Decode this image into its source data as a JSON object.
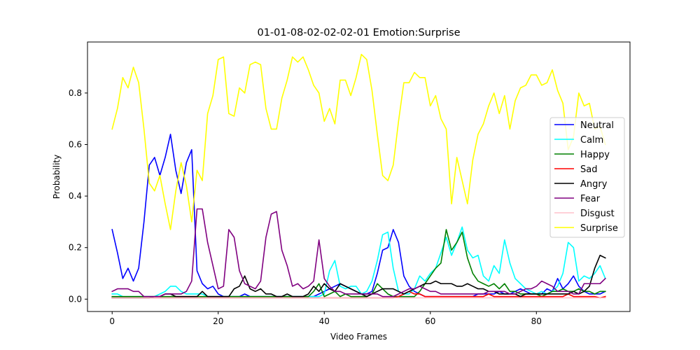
{
  "chart_data": {
    "type": "line",
    "title": "01-01-08-02-02-02-01 Emotion:Surprise",
    "xlabel": "Video Frames",
    "ylabel": "Probability",
    "xlim": [
      -4.65,
      97.65
    ],
    "ylim": [
      -0.048,
      0.998
    ],
    "xticks": [
      0,
      20,
      40,
      60,
      80
    ],
    "yticks": [
      0.0,
      0.2,
      0.4,
      0.6,
      0.8
    ],
    "ytick_labels": [
      "0.0",
      "0.2",
      "0.4",
      "0.6",
      "0.8"
    ],
    "grid": false,
    "legend_position": "center-right",
    "series": [
      {
        "name": "Neutral",
        "color": "#0000ff",
        "values": [
          0.27,
          0.18,
          0.08,
          0.12,
          0.07,
          0.12,
          0.3,
          0.52,
          0.55,
          0.48,
          0.55,
          0.64,
          0.5,
          0.41,
          0.53,
          0.58,
          0.11,
          0.06,
          0.04,
          0.05,
          0.02,
          0.01,
          0.01,
          0.01,
          0.01,
          0.02,
          0.01,
          0.01,
          0.01,
          0.01,
          0.01,
          0.01,
          0.01,
          0.01,
          0.01,
          0.01,
          0.01,
          0.01,
          0.01,
          0.02,
          0.03,
          0.04,
          0.05,
          0.06,
          0.05,
          0.04,
          0.03,
          0.02,
          0.02,
          0.03,
          0.1,
          0.19,
          0.2,
          0.27,
          0.22,
          0.09,
          0.05,
          0.03,
          0.02,
          0.01,
          0.01,
          0.01,
          0.01,
          0.01,
          0.01,
          0.01,
          0.01,
          0.01,
          0.01,
          0.02,
          0.02,
          0.02,
          0.02,
          0.03,
          0.02,
          0.02,
          0.03,
          0.04,
          0.03,
          0.02,
          0.02,
          0.02,
          0.04,
          0.03,
          0.08,
          0.04,
          0.06,
          0.09,
          0.05,
          0.03,
          0.02,
          0.02,
          0.02,
          0.03
        ]
      },
      {
        "name": "Calm",
        "color": "#00ffff",
        "values": [
          0.02,
          0.02,
          0.01,
          0.01,
          0.01,
          0.01,
          0.01,
          0.01,
          0.01,
          0.02,
          0.03,
          0.05,
          0.05,
          0.03,
          0.02,
          0.02,
          0.02,
          0.02,
          0.01,
          0.01,
          0.01,
          0.01,
          0.01,
          0.01,
          0.01,
          0.01,
          0.01,
          0.01,
          0.01,
          0.01,
          0.01,
          0.01,
          0.01,
          0.01,
          0.01,
          0.01,
          0.01,
          0.01,
          0.01,
          0.01,
          0.02,
          0.11,
          0.15,
          0.05,
          0.04,
          0.05,
          0.05,
          0.02,
          0.03,
          0.07,
          0.15,
          0.25,
          0.26,
          0.12,
          0.03,
          0.02,
          0.02,
          0.04,
          0.09,
          0.07,
          0.1,
          0.12,
          0.18,
          0.24,
          0.17,
          0.22,
          0.28,
          0.19,
          0.16,
          0.17,
          0.09,
          0.07,
          0.13,
          0.1,
          0.23,
          0.14,
          0.08,
          0.06,
          0.04,
          0.03,
          0.02,
          0.03,
          0.02,
          0.03,
          0.05,
          0.1,
          0.22,
          0.2,
          0.07,
          0.09,
          0.08,
          0.1,
          0.13,
          0.08
        ]
      },
      {
        "name": "Happy",
        "color": "#008000",
        "values": [
          0.01,
          0.01,
          0.01,
          0.01,
          0.01,
          0.01,
          0.01,
          0.01,
          0.01,
          0.01,
          0.01,
          0.01,
          0.01,
          0.01,
          0.01,
          0.01,
          0.01,
          0.01,
          0.01,
          0.01,
          0.01,
          0.01,
          0.01,
          0.01,
          0.01,
          0.01,
          0.01,
          0.01,
          0.01,
          0.01,
          0.01,
          0.01,
          0.01,
          0.01,
          0.01,
          0.01,
          0.01,
          0.01,
          0.03,
          0.06,
          0.01,
          0.02,
          0.03,
          0.01,
          0.02,
          0.01,
          0.01,
          0.01,
          0.01,
          0.02,
          0.06,
          0.04,
          0.02,
          0.01,
          0.01,
          0.01,
          0.01,
          0.01,
          0.03,
          0.06,
          0.09,
          0.12,
          0.14,
          0.27,
          0.19,
          0.22,
          0.26,
          0.16,
          0.1,
          0.07,
          0.06,
          0.05,
          0.06,
          0.04,
          0.06,
          0.03,
          0.03,
          0.02,
          0.02,
          0.02,
          0.02,
          0.01,
          0.02,
          0.03,
          0.03,
          0.04,
          0.03,
          0.03,
          0.04,
          0.03,
          0.03,
          0.02,
          0.03,
          0.03
        ]
      },
      {
        "name": "Sad",
        "color": "#ff0000",
        "values": [
          0.005,
          0.005,
          0.005,
          0.005,
          0.005,
          0.005,
          0.005,
          0.005,
          0.005,
          0.005,
          0.005,
          0.005,
          0.005,
          0.005,
          0.005,
          0.005,
          0.005,
          0.005,
          0.005,
          0.005,
          0.005,
          0.005,
          0.005,
          0.005,
          0.005,
          0.005,
          0.005,
          0.005,
          0.005,
          0.005,
          0.005,
          0.005,
          0.005,
          0.005,
          0.005,
          0.005,
          0.005,
          0.005,
          0.005,
          0.005,
          0.005,
          0.005,
          0.005,
          0.005,
          0.005,
          0.005,
          0.005,
          0.005,
          0.005,
          0.005,
          0.005,
          0.005,
          0.005,
          0.005,
          0.01,
          0.02,
          0.03,
          0.02,
          0.02,
          0.01,
          0.01,
          0.01,
          0.01,
          0.01,
          0.01,
          0.01,
          0.01,
          0.01,
          0.01,
          0.01,
          0.01,
          0.02,
          0.01,
          0.01,
          0.01,
          0.01,
          0.01,
          0.01,
          0.01,
          0.01,
          0.01,
          0.01,
          0.01,
          0.01,
          0.01,
          0.01,
          0.02,
          0.01,
          0.01,
          0.01,
          0.01,
          0.01,
          0.005,
          0.01
        ]
      },
      {
        "name": "Angry",
        "color": "#000000",
        "values": [
          0.005,
          0.005,
          0.005,
          0.005,
          0.005,
          0.005,
          0.005,
          0.005,
          0.01,
          0.01,
          0.02,
          0.02,
          0.01,
          0.01,
          0.01,
          0.01,
          0.01,
          0.03,
          0.01,
          0.01,
          0.01,
          0.01,
          0.01,
          0.04,
          0.05,
          0.09,
          0.04,
          0.03,
          0.04,
          0.02,
          0.02,
          0.01,
          0.01,
          0.02,
          0.01,
          0.01,
          0.01,
          0.02,
          0.05,
          0.03,
          0.06,
          0.04,
          0.03,
          0.06,
          0.05,
          0.04,
          0.03,
          0.02,
          0.01,
          0.02,
          0.03,
          0.04,
          0.04,
          0.04,
          0.03,
          0.02,
          0.03,
          0.04,
          0.05,
          0.06,
          0.06,
          0.07,
          0.06,
          0.06,
          0.06,
          0.05,
          0.05,
          0.06,
          0.05,
          0.04,
          0.04,
          0.03,
          0.03,
          0.02,
          0.02,
          0.02,
          0.02,
          0.01,
          0.02,
          0.02,
          0.02,
          0.02,
          0.02,
          0.02,
          0.02,
          0.02,
          0.02,
          0.03,
          0.02,
          0.03,
          0.05,
          0.12,
          0.17,
          0.16
        ]
      },
      {
        "name": "Fear",
        "color": "#800080",
        "values": [
          0.03,
          0.04,
          0.04,
          0.04,
          0.03,
          0.03,
          0.01,
          0.01,
          0.01,
          0.01,
          0.02,
          0.02,
          0.02,
          0.02,
          0.03,
          0.07,
          0.35,
          0.35,
          0.22,
          0.13,
          0.04,
          0.05,
          0.27,
          0.24,
          0.11,
          0.06,
          0.05,
          0.04,
          0.07,
          0.24,
          0.33,
          0.34,
          0.19,
          0.13,
          0.05,
          0.06,
          0.04,
          0.05,
          0.07,
          0.23,
          0.08,
          0.05,
          0.03,
          0.03,
          0.02,
          0.02,
          0.02,
          0.02,
          0.02,
          0.02,
          0.02,
          0.01,
          0.01,
          0.01,
          0.02,
          0.03,
          0.04,
          0.04,
          0.05,
          0.04,
          0.03,
          0.03,
          0.02,
          0.02,
          0.02,
          0.02,
          0.02,
          0.02,
          0.02,
          0.02,
          0.02,
          0.03,
          0.03,
          0.03,
          0.03,
          0.02,
          0.02,
          0.03,
          0.04,
          0.04,
          0.05,
          0.07,
          0.06,
          0.05,
          0.03,
          0.03,
          0.03,
          0.02,
          0.02,
          0.06,
          0.06,
          0.06,
          0.06,
          0.08
        ]
      },
      {
        "name": "Disgust",
        "color": "#ffc0cb",
        "values": [
          0.005,
          0.005,
          0.005,
          0.005,
          0.005,
          0.005,
          0.005,
          0.005,
          0.005,
          0.005,
          0.005,
          0.005,
          0.005,
          0.005,
          0.005,
          0.005,
          0.005,
          0.005,
          0.005,
          0.005,
          0.005,
          0.005,
          0.005,
          0.005,
          0.005,
          0.005,
          0.005,
          0.005,
          0.005,
          0.005,
          0.005,
          0.005,
          0.005,
          0.005,
          0.005,
          0.005,
          0.005,
          0.005,
          0.005,
          0.005,
          0.005,
          0.005,
          0.005,
          0.005,
          0.005,
          0.005,
          0.005,
          0.005,
          0.005,
          0.005,
          0.005,
          0.005,
          0.005,
          0.005,
          0.005,
          0.005,
          0.005,
          0.005,
          0.005,
          0.005,
          0.005,
          0.005,
          0.005,
          0.005,
          0.005,
          0.005,
          0.005,
          0.005,
          0.005,
          0.005,
          0.005,
          0.005,
          0.005,
          0.005,
          0.005,
          0.005,
          0.005,
          0.005,
          0.005,
          0.005,
          0.005,
          0.005,
          0.005,
          0.005,
          0.005,
          0.005,
          0.005,
          0.005,
          0.005,
          0.005,
          0.005,
          0.005,
          0.005,
          0.005
        ]
      },
      {
        "name": "Surprise",
        "color": "#ffff00",
        "values": [
          0.66,
          0.74,
          0.86,
          0.82,
          0.9,
          0.84,
          0.66,
          0.45,
          0.42,
          0.48,
          0.37,
          0.27,
          0.42,
          0.53,
          0.44,
          0.3,
          0.5,
          0.46,
          0.72,
          0.79,
          0.93,
          0.94,
          0.72,
          0.71,
          0.82,
          0.8,
          0.91,
          0.92,
          0.91,
          0.74,
          0.66,
          0.66,
          0.78,
          0.85,
          0.94,
          0.92,
          0.94,
          0.89,
          0.83,
          0.8,
          0.69,
          0.74,
          0.68,
          0.85,
          0.85,
          0.79,
          0.86,
          0.95,
          0.93,
          0.81,
          0.64,
          0.48,
          0.46,
          0.52,
          0.69,
          0.84,
          0.84,
          0.88,
          0.86,
          0.86,
          0.75,
          0.79,
          0.7,
          0.66,
          0.37,
          0.55,
          0.46,
          0.37,
          0.54,
          0.64,
          0.68,
          0.75,
          0.8,
          0.72,
          0.79,
          0.66,
          0.77,
          0.82,
          0.83,
          0.87,
          0.87,
          0.83,
          0.84,
          0.89,
          0.81,
          0.76,
          0.58,
          0.63,
          0.8,
          0.75,
          0.76,
          0.66,
          0.67,
          0.6
        ]
      }
    ]
  }
}
